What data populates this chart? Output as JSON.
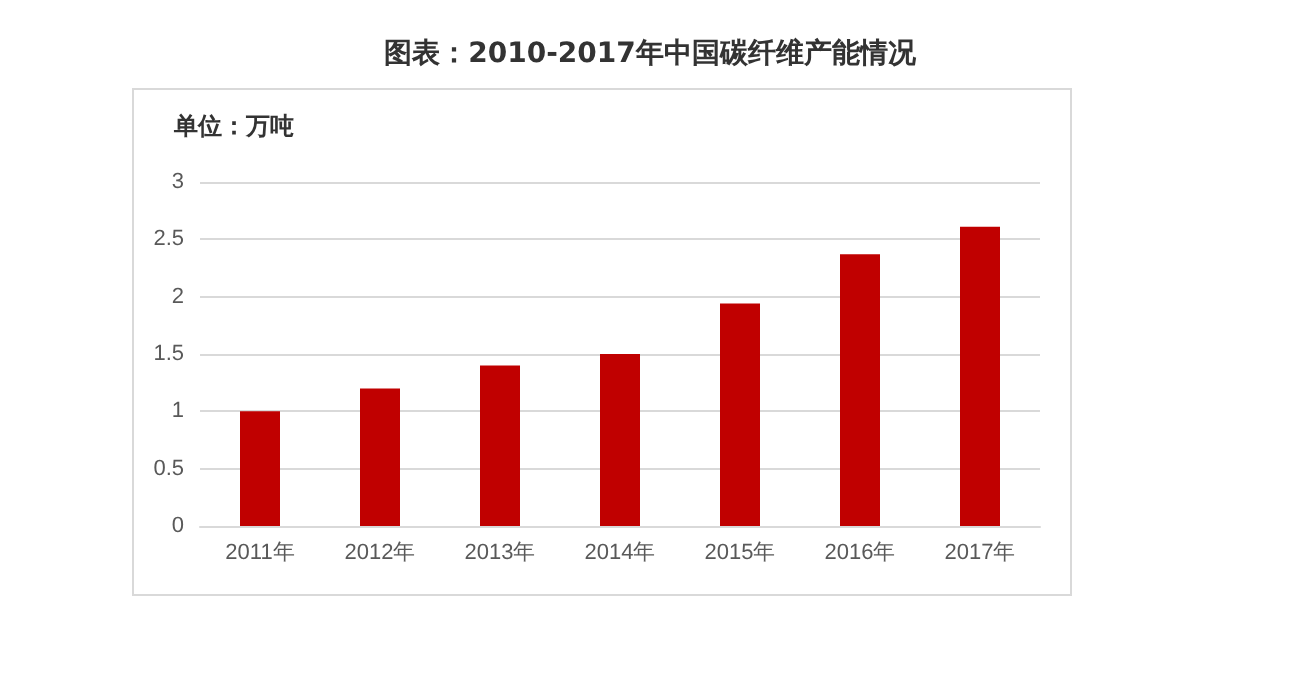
{
  "chart_data": {
    "type": "bar",
    "title": "图表：2010-2017年中国碳纤维产能情况",
    "ylabel": "单位：万吨",
    "categories": [
      "2011年",
      "2012年",
      "2013年",
      "2014年",
      "2015年",
      "2016年",
      "2017年"
    ],
    "values": [
      1.0,
      1.2,
      1.4,
      1.5,
      1.94,
      2.37,
      2.61
    ],
    "color": "#c00000",
    "ylim": [
      0,
      3
    ],
    "yticks": [
      0,
      0.5,
      1,
      1.5,
      2,
      2.5,
      3
    ],
    "grid": "y"
  }
}
